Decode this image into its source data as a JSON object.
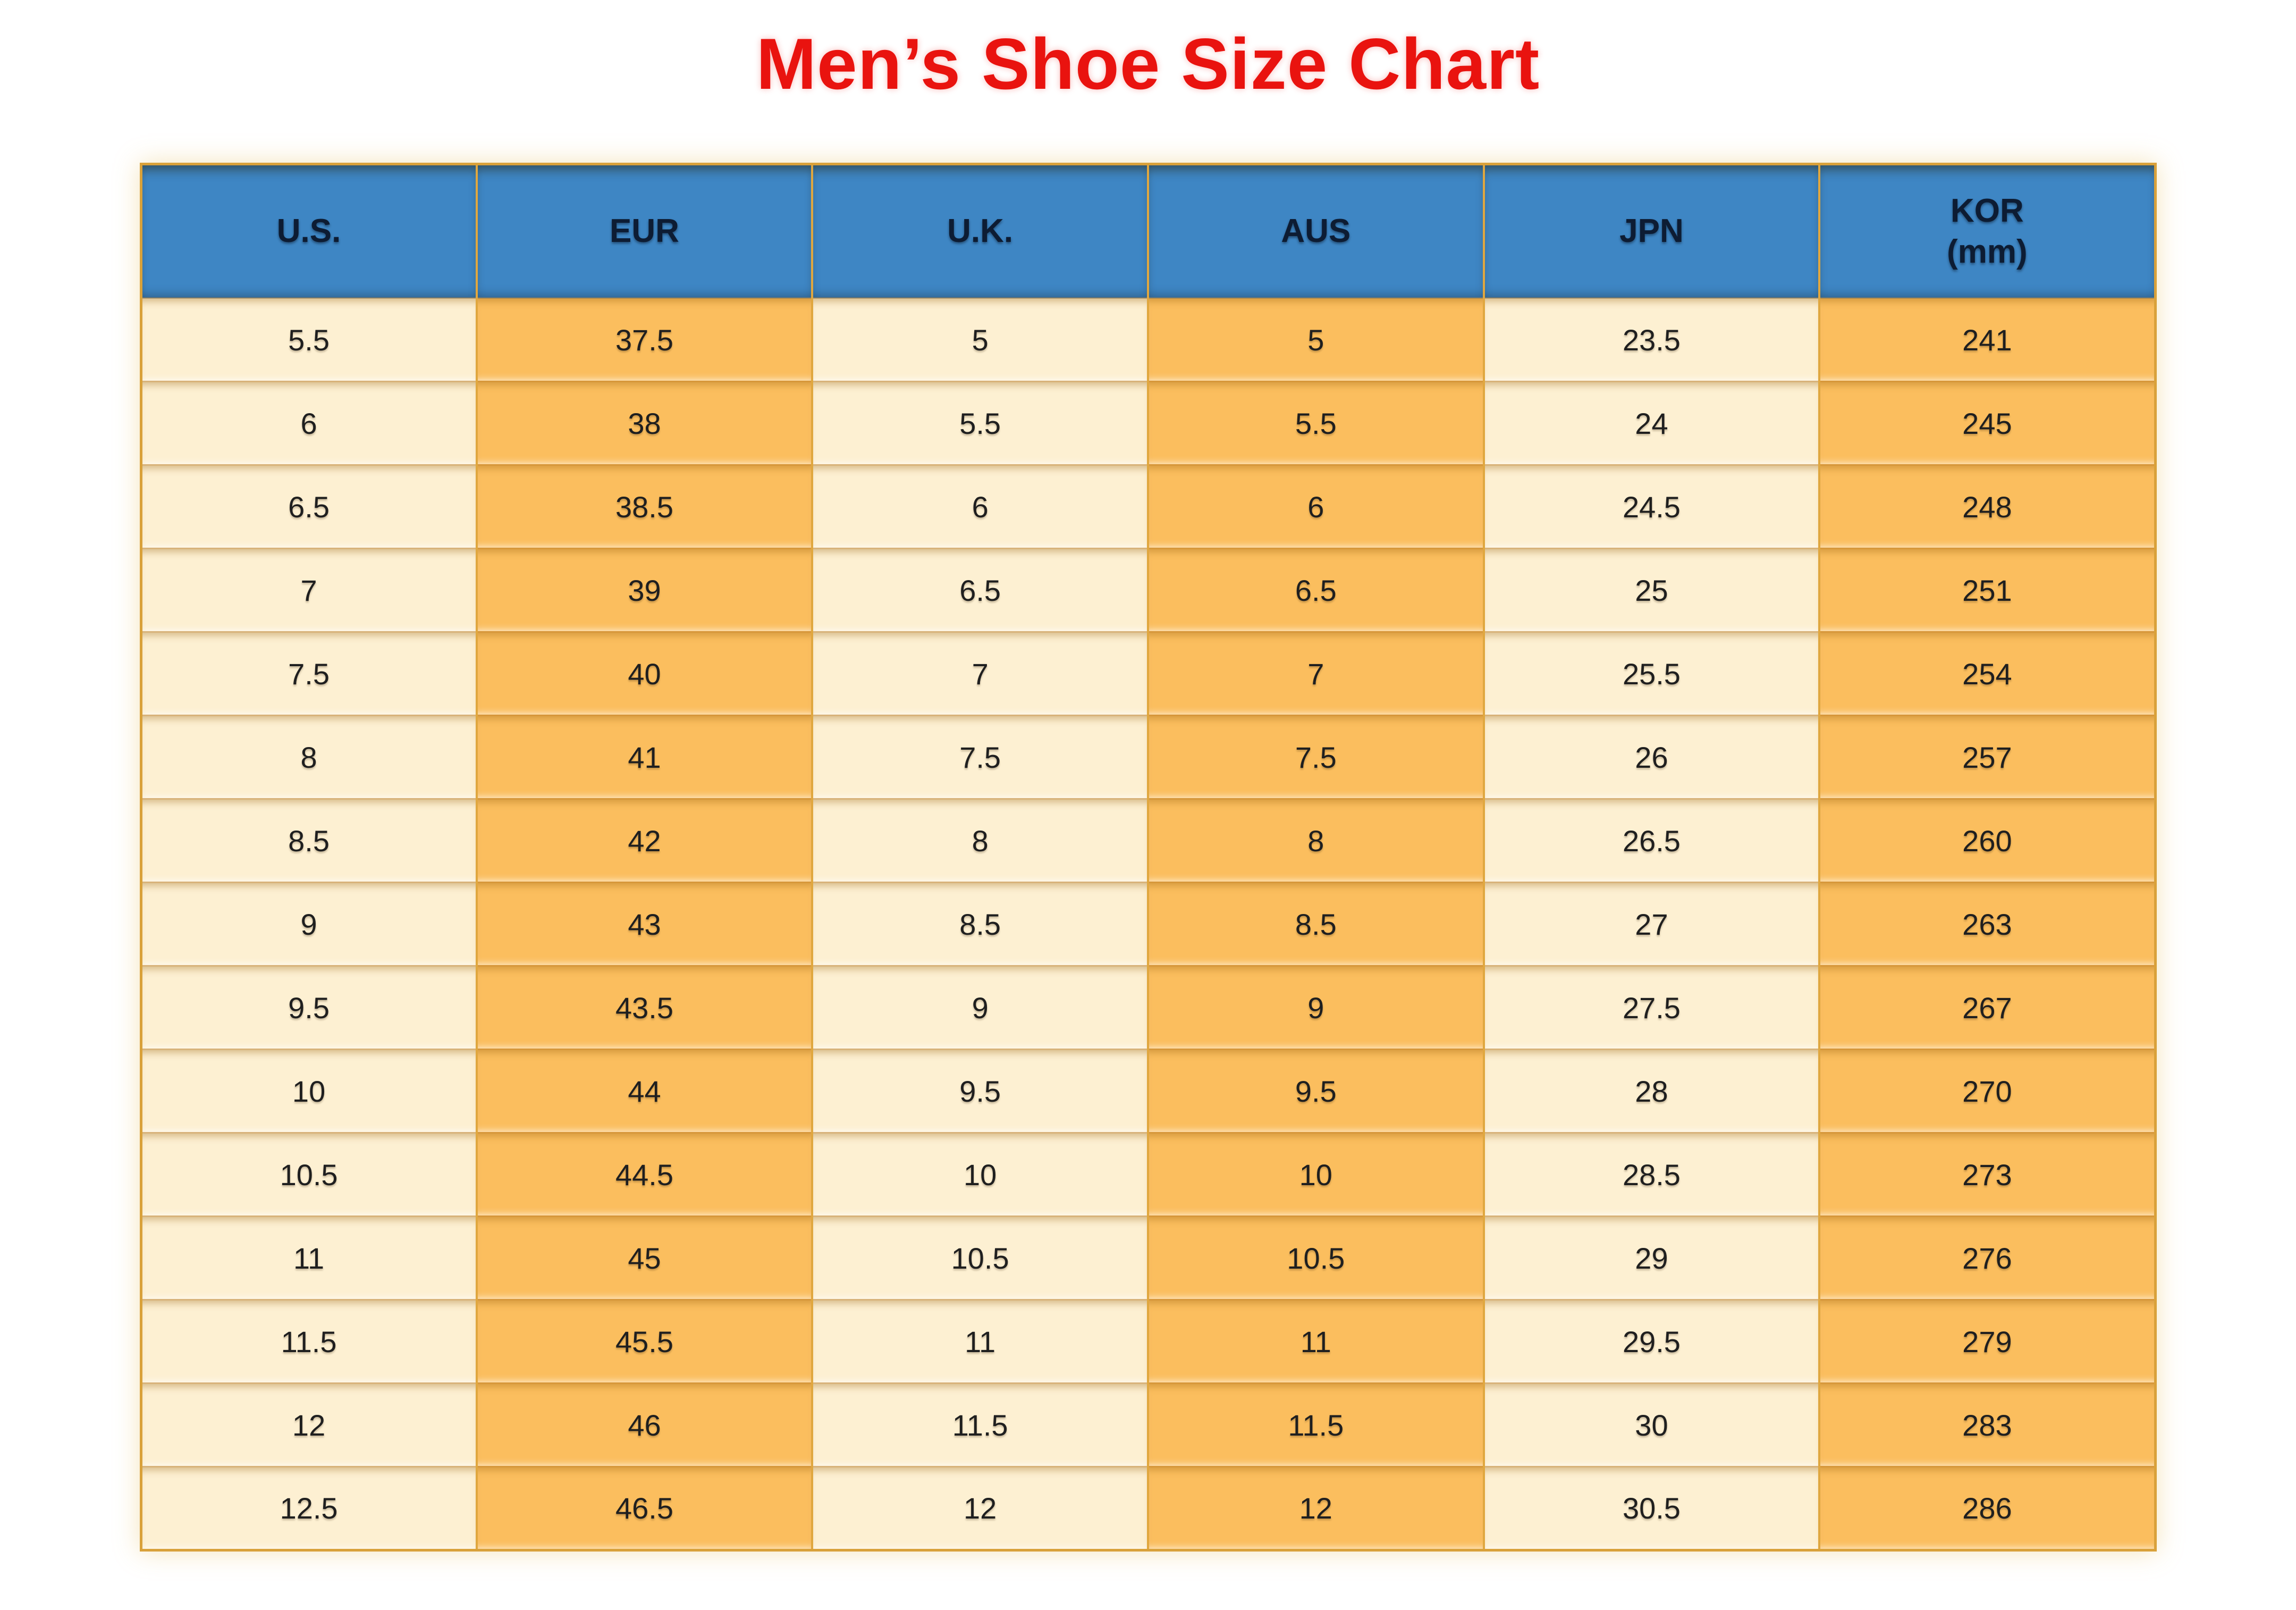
{
  "title": {
    "text": "Men’s Shoe Size Chart",
    "color": "#e9130f"
  },
  "chart_data": {
    "type": "table",
    "title": "Men’s Shoe Size Chart",
    "columns": [
      {
        "label": "U.S.",
        "sublabel": ""
      },
      {
        "label": "EUR",
        "sublabel": ""
      },
      {
        "label": "U.K.",
        "sublabel": ""
      },
      {
        "label": "AUS",
        "sublabel": ""
      },
      {
        "label": "JPN",
        "sublabel": ""
      },
      {
        "label": "KOR",
        "sublabel": "(mm)"
      }
    ],
    "rows": [
      [
        "5.5",
        "37.5",
        "5",
        "5",
        "23.5",
        "241"
      ],
      [
        "6",
        "38",
        "5.5",
        "5.5",
        "24",
        "245"
      ],
      [
        "6.5",
        "38.5",
        "6",
        "6",
        "24.5",
        "248"
      ],
      [
        "7",
        "39",
        "6.5",
        "6.5",
        "25",
        "251"
      ],
      [
        "7.5",
        "40",
        "7",
        "7",
        "25.5",
        "254"
      ],
      [
        "8",
        "41",
        "7.5",
        "7.5",
        "26",
        "257"
      ],
      [
        "8.5",
        "42",
        "8",
        "8",
        "26.5",
        "260"
      ],
      [
        "9",
        "43",
        "8.5",
        "8.5",
        "27",
        "263"
      ],
      [
        "9.5",
        "43.5",
        "9",
        "9",
        "27.5",
        "267"
      ],
      [
        "10",
        "44",
        "9.5",
        "9.5",
        "28",
        "270"
      ],
      [
        "10.5",
        "44.5",
        "10",
        "10",
        "28.5",
        "273"
      ],
      [
        "11",
        "45",
        "10.5",
        "10.5",
        "29",
        "276"
      ],
      [
        "11.5",
        "45.5",
        "11",
        "11",
        "29.5",
        "279"
      ],
      [
        "12",
        "46",
        "11.5",
        "11.5",
        "30",
        "283"
      ],
      [
        "12.5",
        "46.5",
        "12",
        "12",
        "30.5",
        "286"
      ]
    ]
  },
  "colors": {
    "header_bg": "#3e86c4",
    "header_text": "#0d1c33",
    "column_light": "#fdf0d2",
    "column_dark": "#fbbe5e",
    "border_gold": "#e0a73f",
    "outer_border": "#d9a13a",
    "cell_text": "#1f1f1f",
    "title_red": "#e9130f"
  }
}
